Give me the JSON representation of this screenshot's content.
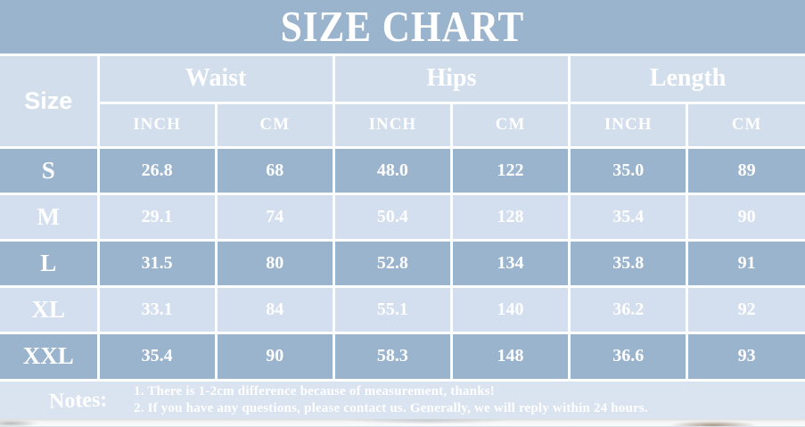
{
  "title": "SIZE CHART",
  "table": {
    "size_label": "Size",
    "groups": [
      {
        "label": "Waist",
        "sub": [
          "INCH",
          "CM"
        ]
      },
      {
        "label": "Hips",
        "sub": [
          "INCH",
          "CM"
        ]
      },
      {
        "label": "Length",
        "sub": [
          "INCH",
          "CM"
        ]
      }
    ],
    "rows": [
      {
        "size": "S",
        "values": [
          "26.8",
          "68",
          "48.0",
          "122",
          "35.0",
          "89"
        ]
      },
      {
        "size": "M",
        "values": [
          "29.1",
          "74",
          "50.4",
          "128",
          "35.4",
          "90"
        ]
      },
      {
        "size": "L",
        "values": [
          "31.5",
          "80",
          "52.8",
          "134",
          "35.8",
          "91"
        ]
      },
      {
        "size": "XL",
        "values": [
          "33.1",
          "84",
          "55.1",
          "140",
          "36.2",
          "92"
        ]
      },
      {
        "size": "XXL",
        "values": [
          "35.4",
          "90",
          "58.3",
          "148",
          "36.6",
          "93"
        ]
      }
    ]
  },
  "notes": {
    "label": "Notes:",
    "lines": [
      "1. There is 1-2cm difference because of measurement, thanks!",
      "2. If you have any questions, please contact us. Generally, we will reply within 24 hours."
    ]
  },
  "colors": {
    "band": "#9bb4ce",
    "row_dark": "#9bb4ce",
    "row_light": "#d3dfee",
    "header_bg": "#d3deec",
    "notes_bg": "#dae3f0",
    "border": "#ffffff",
    "text": "#ffffff"
  },
  "chart_data": {
    "type": "table",
    "title": "SIZE CHART",
    "columns": [
      "Size",
      "Waist INCH",
      "Waist CM",
      "Hips INCH",
      "Hips CM",
      "Length INCH",
      "Length CM"
    ],
    "rows": [
      [
        "S",
        26.8,
        68,
        48.0,
        122,
        35.0,
        89
      ],
      [
        "M",
        29.1,
        74,
        50.4,
        128,
        35.4,
        90
      ],
      [
        "L",
        31.5,
        80,
        52.8,
        134,
        35.8,
        91
      ],
      [
        "XL",
        33.1,
        84,
        55.1,
        140,
        36.2,
        92
      ],
      [
        "XXL",
        35.4,
        90,
        58.3,
        148,
        36.6,
        93
      ]
    ],
    "notes": [
      "1. There is 1-2cm difference because of measurement, thanks!",
      "2. If you have any questions, please contact us. Generally, we will reply within 24 hours."
    ]
  }
}
